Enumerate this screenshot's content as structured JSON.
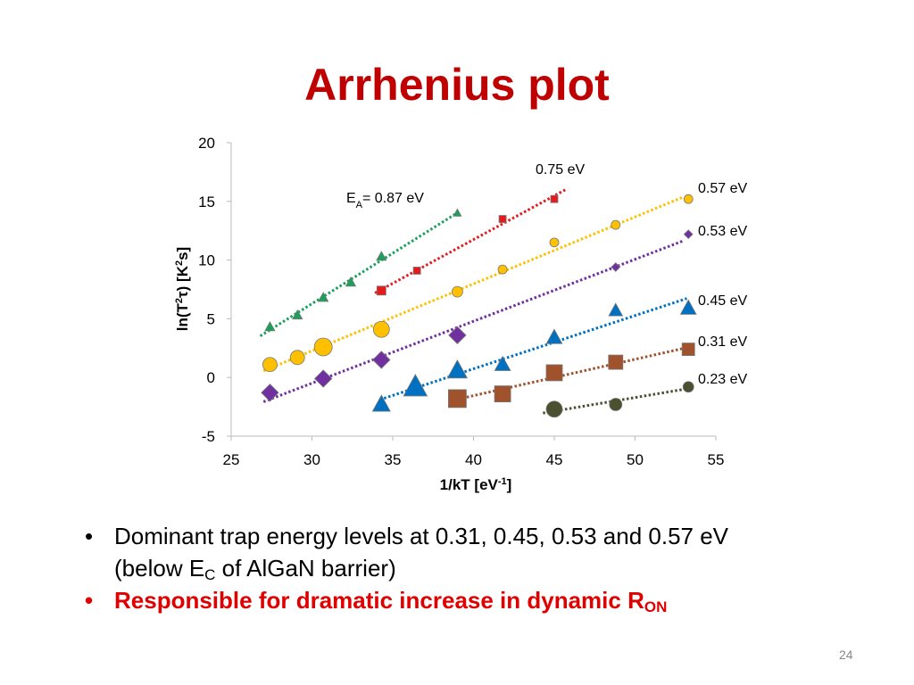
{
  "slide": {
    "title": "Arrhenius plot",
    "page_number": "24"
  },
  "bullets": [
    {
      "bullet": "•",
      "text": "Dominant trap energy levels at 0.31, 0.45, 0.53 and 0.57 eV",
      "text2_pre": "(below E",
      "text2_sub": "C",
      "text2_post": " of AlGaN barrier)"
    },
    {
      "bullet": "•",
      "text": "Responsible for dramatic increase in dynamic R",
      "sub": "ON"
    }
  ],
  "chart_data": {
    "type": "scatter",
    "title": "",
    "xlabel": "1/kT [eV-1]",
    "xlabel_main": "1/kT [eV",
    "xlabel_sup": "-1",
    "xlabel_end": "]",
    "ylabel": "ln(T2τ) [K2s]",
    "xlim": [
      25,
      55
    ],
    "ylim": [
      -5,
      20
    ],
    "xticks": [
      "25",
      "30",
      "35",
      "40",
      "45",
      "50",
      "55"
    ],
    "yticks": [
      "20",
      "15",
      "10",
      "5",
      "0",
      "-5"
    ],
    "grid": false,
    "series": [
      {
        "name": "0.87 eV",
        "label": "E_A= 0.87 eV",
        "color": "#1AA05A",
        "marker": "triangle",
        "x": [
          27.4,
          29.1,
          30.7,
          32.4,
          34.3,
          39.0
        ],
        "y": [
          4.3,
          5.3,
          6.8,
          8.1,
          10.3,
          14.0
        ],
        "fit_range": [
          26.8,
          39.1
        ]
      },
      {
        "name": "0.75 eV",
        "label": "0.75 eV",
        "color": "#E41A1C",
        "marker": "square",
        "x": [
          34.3,
          36.5,
          41.8,
          45.0
        ],
        "y": [
          7.4,
          9.1,
          13.5,
          15.2
        ],
        "fit_range": [
          33.9,
          45.7
        ]
      },
      {
        "name": "0.57 eV",
        "label": "0.57 eV",
        "color": "#FFC000",
        "marker": "circle",
        "x": [
          27.4,
          29.1,
          30.7,
          34.3,
          39.0,
          41.8,
          45.0,
          48.8,
          53.3
        ],
        "y": [
          1.1,
          1.7,
          2.6,
          4.1,
          7.3,
          9.2,
          11.5,
          13.0,
          15.2
        ],
        "fit_range": [
          27.0,
          53.0
        ]
      },
      {
        "name": "0.53 eV",
        "label": "0.53 eV",
        "color": "#7030A0",
        "marker": "diamond",
        "x": [
          27.4,
          30.7,
          34.3,
          39.0,
          48.8,
          53.3
        ],
        "y": [
          -1.3,
          -0.1,
          1.5,
          3.6,
          9.4,
          12.2
        ],
        "fit_range": [
          27.0,
          53.0
        ]
      },
      {
        "name": "0.45 eV",
        "label": "0.45 eV",
        "color": "#0070C0",
        "marker": "triangle",
        "x": [
          34.3,
          36.4,
          39.0,
          41.8,
          45.0,
          48.8,
          53.3
        ],
        "y": [
          -2.3,
          -0.8,
          0.6,
          1.1,
          3.4,
          5.7,
          5.9
        ],
        "fit_range": [
          34.2,
          53.2
        ]
      },
      {
        "name": "0.31 eV",
        "label": "0.31 eV",
        "color": "#A0522D",
        "marker": "square",
        "x": [
          39.0,
          41.8,
          45.0,
          48.8,
          53.3
        ],
        "y": [
          -1.8,
          -1.4,
          0.4,
          1.3,
          2.4
        ],
        "fit_range": [
          38.5,
          53.2
        ]
      },
      {
        "name": "0.23 eV",
        "label": "0.23 eV",
        "color": "#4A5030",
        "marker": "circle",
        "x": [
          45.0,
          48.8,
          53.3
        ],
        "y": [
          -2.7,
          -2.3,
          -0.8
        ],
        "fit_range": [
          44.3,
          53.2
        ]
      }
    ]
  }
}
